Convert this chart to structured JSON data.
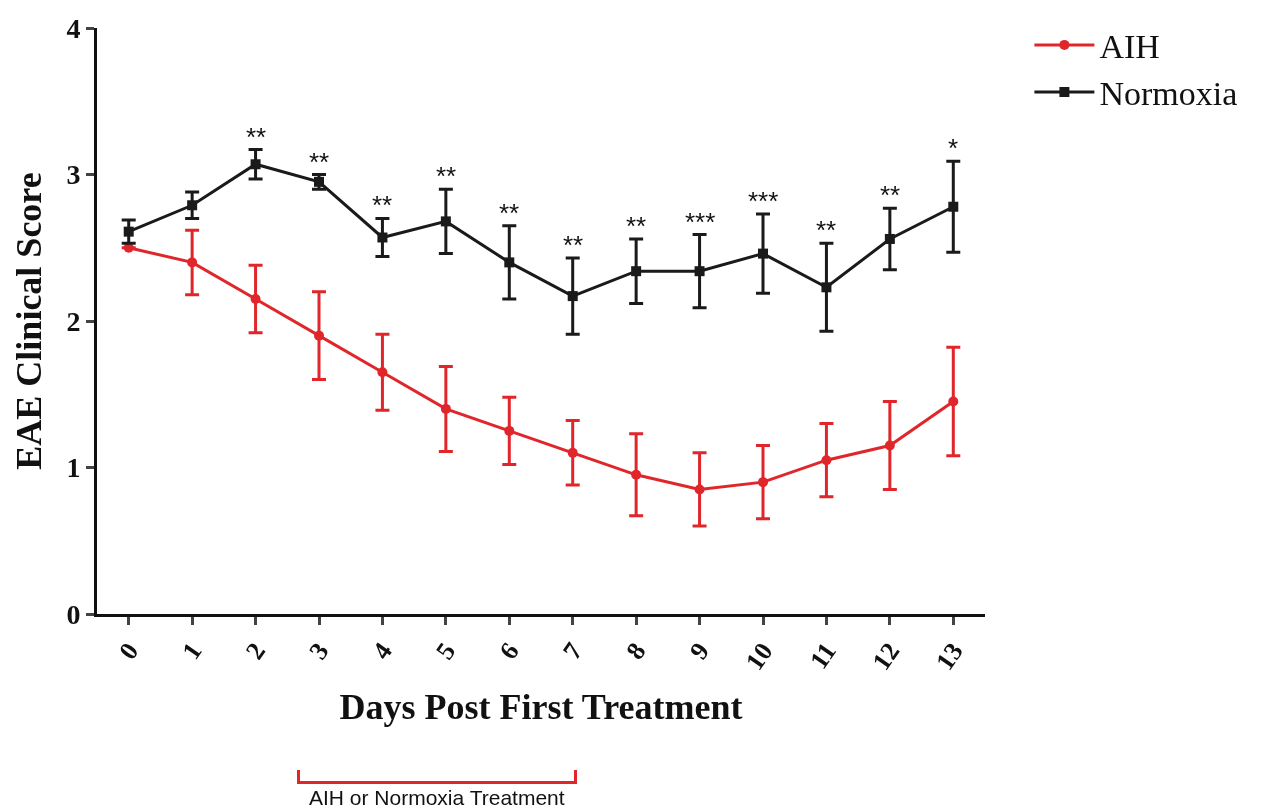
{
  "chart_data": {
    "type": "line",
    "xlabel": "Days Post First Treatment",
    "ylabel": "EAE Clinical Score",
    "x": [
      0,
      1,
      2,
      3,
      4,
      5,
      6,
      7,
      8,
      9,
      10,
      11,
      12,
      13
    ],
    "series": [
      {
        "name": "AIH",
        "color": "#e0262b",
        "marker": "circle",
        "values": [
          2.5,
          2.4,
          2.15,
          1.9,
          1.65,
          1.4,
          1.25,
          1.1,
          0.95,
          0.85,
          0.9,
          1.05,
          1.15,
          1.45
        ],
        "errors": [
          0,
          0.22,
          0.23,
          0.3,
          0.26,
          0.29,
          0.23,
          0.22,
          0.28,
          0.25,
          0.25,
          0.25,
          0.3,
          0.37
        ]
      },
      {
        "name": "Normoxia",
        "color": "#1a1a1a",
        "marker": "square",
        "values": [
          2.61,
          2.79,
          3.07,
          2.95,
          2.57,
          2.68,
          2.4,
          2.17,
          2.34,
          2.34,
          2.46,
          2.23,
          2.56,
          2.78
        ],
        "errors": [
          0.08,
          0.09,
          0.1,
          0.05,
          0.13,
          0.22,
          0.25,
          0.26,
          0.22,
          0.25,
          0.27,
          0.3,
          0.21,
          0.31
        ]
      }
    ],
    "annotations": [
      {
        "text": "**",
        "x": 2,
        "y": 3.17
      },
      {
        "text": "**",
        "x": 3,
        "y": 3.0
      },
      {
        "text": "**",
        "x": 4,
        "y": 2.7
      },
      {
        "text": "**",
        "x": 5,
        "y": 2.9
      },
      {
        "text": "**",
        "x": 6,
        "y": 2.65
      },
      {
        "text": "**",
        "x": 7,
        "y": 2.43
      },
      {
        "text": "**",
        "x": 8,
        "y": 2.56
      },
      {
        "text": "***",
        "x": 9,
        "y": 2.59
      },
      {
        "text": "***",
        "x": 10,
        "y": 2.73
      },
      {
        "text": "**",
        "x": 11,
        "y": 2.53
      },
      {
        "text": "**",
        "x": 12,
        "y": 2.77
      },
      {
        "text": "*",
        "x": 13,
        "y": 3.09
      },
      "AIH or Normoxia Treatment"
    ],
    "xlim": [
      -0.5,
      13.5
    ],
    "xticks": [
      0,
      1,
      2,
      3,
      4,
      5,
      6,
      7,
      8,
      9,
      10,
      11,
      12,
      13
    ],
    "ylim": [
      0,
      4
    ],
    "yticks": [
      0,
      1,
      2,
      3,
      4
    ],
    "grid": false,
    "legend": "top right",
    "line_style": "solid"
  }
}
